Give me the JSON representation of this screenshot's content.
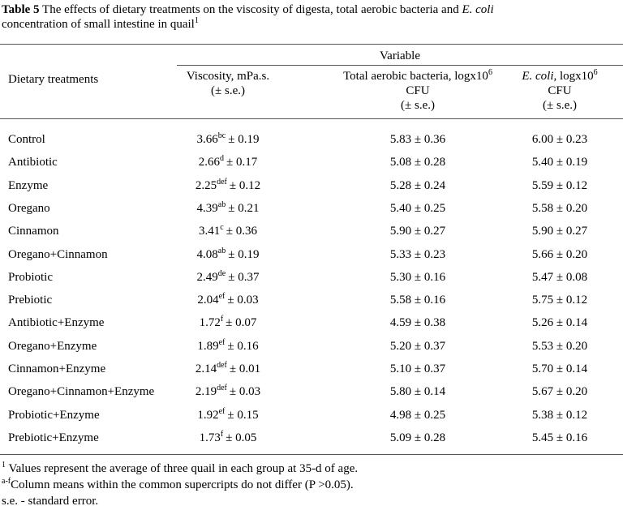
{
  "header": {
    "label": "Table 5",
    "text": " The effects of dietary treatments on the viscosity of digesta, total aerobic bacteria and ",
    "italic": "E. coli",
    "text2": "concentration of small intestine in quail",
    "sup": "1"
  },
  "table": {
    "group_header": "Variable",
    "columns": {
      "treatment": "Dietary treatments",
      "viscosity": {
        "line1": "Viscosity, mPa.s.",
        "line2": "(± s.e.)"
      },
      "aerobic": {
        "line1": "Total aerobic bacteria, logx10",
        "sup": "6",
        "line2": "CFU",
        "line3": "(± s.e.)"
      },
      "ecoli": {
        "italic": "E. coli",
        "line1": ", logx10",
        "sup": "6",
        "line2": "CFU",
        "line3": "(± s.e.)"
      }
    },
    "rows": [
      [
        "Control",
        {
          "mean": "3.66",
          "sup": "bc",
          "se": "± 0.19"
        },
        "5.83 ± 0.36",
        "6.00 ± 0.23"
      ],
      [
        "Antibiotic",
        {
          "mean": "2.66",
          "sup": "d",
          "se": "± 0.17"
        },
        "5.08 ± 0.28",
        "5.40 ± 0.19"
      ],
      [
        "Enzyme",
        {
          "mean": "2.25",
          "sup": "def",
          "se": "± 0.12"
        },
        "5.28 ± 0.24",
        "5.59 ± 0.12"
      ],
      [
        "Oregano",
        {
          "mean": "4.39",
          "sup": "ab",
          "se": "± 0.21"
        },
        "5.40 ± 0.25",
        "5.58 ± 0.20"
      ],
      [
        "Cinnamon",
        {
          "mean": "3.41",
          "sup": "c",
          "se": "± 0.36"
        },
        "5.90 ± 0.27",
        "5.90 ± 0.27"
      ],
      [
        "Oregano+Cinnamon",
        {
          "mean": "4.08",
          "sup": "ab",
          "se": "± 0.19"
        },
        "5.33 ± 0.23",
        "5.66 ± 0.20"
      ],
      [
        "Probiotic",
        {
          "mean": "2.49",
          "sup": "de",
          "se": "± 0.37"
        },
        "5.30 ± 0.16",
        "5.47 ± 0.08"
      ],
      [
        "Prebiotic",
        {
          "mean": "2.04",
          "sup": "ef",
          "se": "± 0.03"
        },
        "5.58 ± 0.16",
        "5.75 ± 0.12"
      ],
      [
        "Antibiotic+Enzyme",
        {
          "mean": "1.72",
          "sup": "f",
          "se": "± 0.07"
        },
        "4.59 ± 0.38",
        "5.26 ± 0.14"
      ],
      [
        "Oregano+Enzyme",
        {
          "mean": "1.89",
          "sup": "ef",
          "se": "± 0.16"
        },
        "5.20 ± 0.37",
        "5.53 ± 0.20"
      ],
      [
        "Cinnamon+Enzyme",
        {
          "mean": "2.14",
          "sup": "def",
          "se": "± 0.01"
        },
        "5.10 ± 0.37",
        "5.70 ± 0.14"
      ],
      [
        "Oregano+Cinnamon+Enzyme",
        {
          "mean": "2.19",
          "sup": "def",
          "se": "± 0.03"
        },
        "5.80 ± 0.14",
        "5.67 ± 0.20"
      ],
      [
        "Probiotic+Enzyme",
        {
          "mean": "1.92",
          "sup": "ef",
          "se": "± 0.15"
        },
        "4.98 ± 0.25",
        "5.38 ± 0.12"
      ],
      [
        "Prebiotic+Enzyme",
        {
          "mean": "1.73",
          "sup": "f",
          "se": "± 0.05"
        },
        "5.09 ± 0.28",
        "5.45 ± 0.16"
      ]
    ]
  },
  "footnotes": [
    {
      "sup": "1",
      "text": " Values represent the average of three quail in each group at 35-d of age."
    },
    {
      "sup": "a-f",
      "text": "Column means within the common supercripts do not differ (P >0.05)."
    },
    {
      "text": "s.e. - standard error."
    }
  ]
}
